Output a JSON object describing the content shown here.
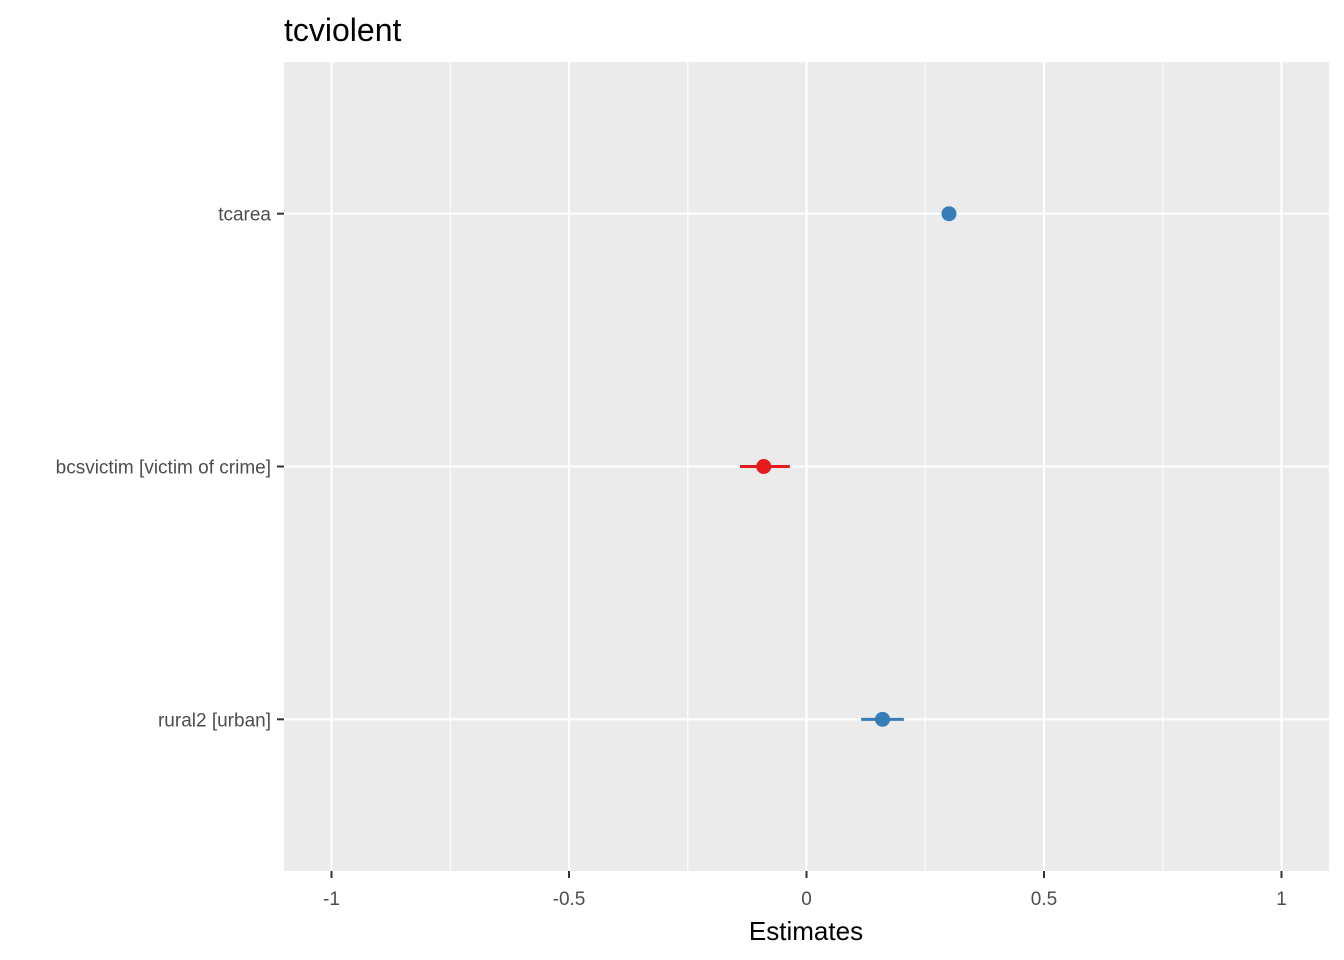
{
  "chart_data": {
    "type": "forest",
    "title": "tcviolent",
    "xlabel": "Estimates",
    "ylabel": "",
    "xlim": [
      -1.1,
      1.1
    ],
    "x_ticks": [
      -1,
      -0.5,
      0,
      0.5,
      1
    ],
    "x_tick_labels": [
      "-1",
      "-0.5",
      "0",
      "0.5",
      "1"
    ],
    "x_minor_ticks": [
      -0.75,
      -0.25,
      0.25,
      0.75
    ],
    "grid": true,
    "legend": "none",
    "terms": [
      {
        "label": "tcarea",
        "estimate": 0.3,
        "ci_low": 0.285,
        "ci_high": 0.315,
        "color": "#377EB8"
      },
      {
        "label": "bcsvictim [victim of crime]",
        "estimate": -0.09,
        "ci_low": -0.14,
        "ci_high": -0.035,
        "color": "#E41A1C"
      },
      {
        "label": "rural2 [urban]",
        "estimate": 0.16,
        "ci_low": 0.115,
        "ci_high": 0.205,
        "color": "#377EB8"
      }
    ],
    "colors": {
      "positive": "#377EB8",
      "negative": "#E41A1C",
      "panel_background": "#EBEBEB",
      "grid": "#FFFFFF"
    }
  }
}
